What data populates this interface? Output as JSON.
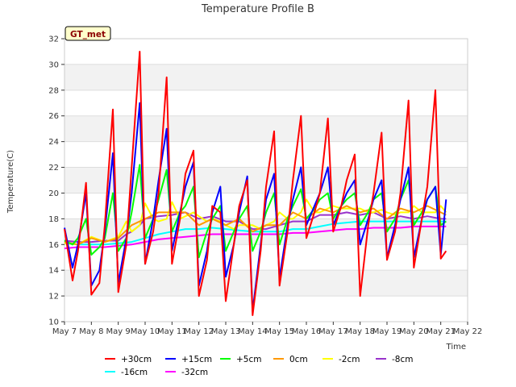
{
  "chart_data": {
    "type": "line",
    "title": "Temperature Profile B",
    "xlabel": "Time",
    "ylabel": "Temperature(C)",
    "site_label": "GT_met",
    "x_ticks": [
      "May 7",
      "May 8",
      "May 9",
      "May 10",
      "May 11",
      "May 12",
      "May 13",
      "May 14",
      "May 15",
      "May 16",
      "May 17",
      "May 18",
      "May 19",
      "May 20",
      "May 21",
      "May 22"
    ],
    "xlim_days": [
      7,
      22
    ],
    "ylim": [
      10,
      32
    ],
    "y_ticks": [
      10,
      12,
      14,
      16,
      18,
      20,
      22,
      24,
      26,
      28,
      30,
      32
    ],
    "grid": "horizontal alternating bands",
    "legend_position": "bottom",
    "series": [
      {
        "name": "+30cm",
        "color": "#ff0000",
        "x": [
          7.0,
          7.3,
          7.5,
          7.8,
          8.0,
          8.3,
          8.5,
          8.8,
          9.0,
          9.3,
          9.5,
          9.8,
          10.0,
          10.3,
          10.5,
          10.8,
          11.0,
          11.3,
          11.5,
          11.8,
          12.0,
          12.3,
          12.5,
          12.8,
          13.0,
          13.3,
          13.5,
          13.8,
          14.0,
          14.3,
          14.5,
          14.8,
          15.0,
          15.3,
          15.5,
          15.8,
          16.0,
          16.3,
          16.5,
          16.8,
          17.0,
          17.3,
          17.5,
          17.8,
          18.0,
          18.3,
          18.5,
          18.8,
          19.0,
          19.3,
          19.5,
          19.8,
          20.0,
          20.3,
          20.5,
          20.8,
          21.0,
          21.2
        ],
        "y": [
          17.2,
          13.2,
          15.5,
          20.8,
          12.1,
          13.0,
          17.5,
          26.5,
          12.3,
          16.0,
          22.0,
          31.0,
          14.5,
          17.0,
          20.0,
          29.0,
          14.5,
          18.0,
          21.5,
          23.3,
          12.0,
          14.8,
          19.0,
          18.5,
          11.6,
          16.0,
          19.0,
          21.0,
          10.5,
          15.5,
          20.5,
          24.8,
          12.8,
          17.0,
          21.0,
          26.0,
          16.5,
          18.5,
          20.0,
          25.8,
          17.0,
          19.0,
          21.0,
          23.0,
          12.0,
          17.5,
          20.0,
          24.7,
          14.8,
          17.0,
          20.0,
          27.2,
          14.2,
          18.0,
          20.5,
          28.0,
          14.9,
          15.5
        ]
      },
      {
        "name": "+15cm",
        "color": "#0000ff",
        "x": [
          7.0,
          7.3,
          7.5,
          7.8,
          8.0,
          8.3,
          8.5,
          8.8,
          9.0,
          9.3,
          9.5,
          9.8,
          10.0,
          10.3,
          10.5,
          10.8,
          11.0,
          11.3,
          11.5,
          11.8,
          12.0,
          12.3,
          12.5,
          12.8,
          13.0,
          13.3,
          13.5,
          13.8,
          14.0,
          14.3,
          14.5,
          14.8,
          15.0,
          15.3,
          15.5,
          15.8,
          16.0,
          16.3,
          16.5,
          16.8,
          17.0,
          17.3,
          17.5,
          17.8,
          18.0,
          18.3,
          18.5,
          18.8,
          19.0,
          19.3,
          19.5,
          19.8,
          20.0,
          20.3,
          20.5,
          20.8,
          21.0,
          21.2
        ],
        "y": [
          17.3,
          14.2,
          16.0,
          20.0,
          12.8,
          14.0,
          17.0,
          23.1,
          13.0,
          16.5,
          20.0,
          27.0,
          14.5,
          18.0,
          21.0,
          25.0,
          15.5,
          18.5,
          20.5,
          22.4,
          12.8,
          15.5,
          18.5,
          20.5,
          13.5,
          16.0,
          18.5,
          21.3,
          10.8,
          16.0,
          19.5,
          21.5,
          13.4,
          17.5,
          19.5,
          22.0,
          17.5,
          19.0,
          20.0,
          22.0,
          17.5,
          19.0,
          20.0,
          21.0,
          16.0,
          18.0,
          19.5,
          21.0,
          15.0,
          17.5,
          19.5,
          22.0,
          15.0,
          18.0,
          19.5,
          20.5,
          15.2,
          19.5
        ]
      },
      {
        "name": "+5cm",
        "color": "#00ff00",
        "x": [
          7.0,
          7.3,
          7.5,
          7.8,
          8.0,
          8.3,
          8.5,
          8.8,
          9.0,
          9.3,
          9.5,
          9.8,
          10.0,
          10.3,
          10.5,
          10.8,
          11.0,
          11.3,
          11.5,
          11.8,
          12.0,
          12.3,
          12.5,
          12.8,
          13.0,
          13.3,
          13.5,
          13.8,
          14.0,
          14.3,
          14.5,
          14.8,
          15.0,
          15.3,
          15.5,
          15.8,
          16.0,
          16.3,
          16.5,
          16.8,
          17.0,
          17.3,
          17.5,
          17.8,
          18.0,
          18.3,
          18.5,
          18.8,
          19.0,
          19.3,
          19.5,
          19.8,
          20.0,
          20.3,
          20.5,
          20.8,
          21.0,
          21.2
        ],
        "y": [
          16.3,
          16.0,
          16.5,
          18.0,
          15.2,
          15.8,
          16.5,
          20.0,
          15.5,
          16.5,
          18.5,
          22.2,
          16.5,
          18.0,
          19.5,
          21.8,
          17.0,
          18.5,
          19.0,
          20.5,
          15.0,
          17.0,
          18.0,
          19.0,
          15.5,
          17.0,
          18.0,
          19.0,
          15.5,
          17.0,
          18.5,
          20.0,
          16.0,
          18.0,
          19.0,
          20.3,
          18.0,
          18.8,
          19.5,
          20.0,
          18.0,
          19.0,
          19.5,
          20.0,
          17.5,
          18.5,
          19.5,
          20.0,
          17.0,
          18.0,
          19.5,
          21.0,
          17.5,
          18.5,
          19.5,
          20.5,
          17.5,
          17.8
        ]
      },
      {
        "name": "0cm",
        "color": "#ff9900",
        "x": [
          7.0,
          7.5,
          8.0,
          8.5,
          9.0,
          9.5,
          10.0,
          10.5,
          11.0,
          11.5,
          12.0,
          12.5,
          13.0,
          13.5,
          14.0,
          14.5,
          15.0,
          15.5,
          16.0,
          16.5,
          17.0,
          17.5,
          18.0,
          18.5,
          19.0,
          19.5,
          20.0,
          20.5,
          21.0,
          21.2
        ],
        "y": [
          16.2,
          16.0,
          16.5,
          16.2,
          16.5,
          17.5,
          18.0,
          18.5,
          18.5,
          18.5,
          17.5,
          18.0,
          17.5,
          18.0,
          17.0,
          17.5,
          17.5,
          18.5,
          18.0,
          18.8,
          18.5,
          19.0,
          18.5,
          18.8,
          18.0,
          18.8,
          18.5,
          19.0,
          18.5,
          18.3
        ]
      },
      {
        "name": "-2cm",
        "color": "#ffff00",
        "x": [
          7.0,
          7.5,
          8.0,
          8.5,
          9.0,
          9.3,
          9.5,
          9.8,
          10.0,
          10.3,
          10.5,
          10.8,
          11.0,
          11.3,
          11.5,
          11.8,
          12.0,
          12.3,
          12.5,
          12.8,
          13.0,
          13.3,
          13.5,
          13.8,
          14.0,
          14.3,
          14.5,
          14.8,
          15.0,
          15.3,
          15.5,
          15.8,
          16.0,
          16.3,
          16.5,
          16.8,
          17.0,
          17.3,
          17.5,
          17.8,
          18.0,
          18.3,
          18.5,
          18.8,
          19.0,
          19.3,
          19.5,
          19.8,
          20.0,
          20.3,
          20.5,
          20.8,
          21.0,
          21.2
        ],
        "y": [
          16.1,
          16.0,
          16.6,
          16.2,
          16.6,
          17.8,
          17.0,
          17.5,
          19.2,
          18.0,
          17.8,
          18.0,
          19.3,
          18.0,
          18.2,
          18.5,
          18.2,
          17.8,
          18.0,
          17.8,
          17.5,
          17.2,
          17.5,
          17.5,
          17.5,
          17.2,
          17.5,
          17.8,
          18.5,
          18.0,
          18.0,
          18.5,
          19.5,
          18.5,
          18.5,
          18.8,
          19.0,
          18.8,
          18.8,
          18.8,
          18.8,
          18.5,
          18.5,
          18.7,
          18.5,
          18.3,
          18.5,
          18.5,
          19.0,
          18.5,
          18.5,
          18.5,
          19.0,
          18.5
        ]
      },
      {
        "name": "-8cm",
        "color": "#9933cc",
        "x": [
          7.0,
          7.5,
          8.0,
          8.5,
          9.0,
          9.3,
          9.5,
          9.8,
          10.0,
          10.5,
          11.0,
          11.5,
          12.0,
          12.5,
          13.0,
          13.5,
          14.0,
          14.5,
          15.0,
          15.5,
          16.0,
          16.5,
          17.0,
          17.5,
          18.0,
          18.5,
          19.0,
          19.5,
          20.0,
          20.5,
          21.0,
          21.2
        ],
        "y": [
          16.3,
          16.2,
          16.2,
          16.3,
          16.3,
          16.8,
          17.0,
          17.5,
          18.0,
          18.2,
          18.3,
          18.5,
          18.0,
          18.2,
          17.8,
          17.8,
          17.2,
          17.2,
          17.5,
          17.8,
          17.8,
          18.3,
          18.3,
          18.5,
          18.3,
          18.5,
          18.0,
          18.2,
          18.0,
          18.2,
          18.0,
          18.0
        ]
      },
      {
        "name": "-16cm",
        "color": "#00ffff",
        "x": [
          7.0,
          7.5,
          8.0,
          8.5,
          9.0,
          9.5,
          10.0,
          10.5,
          11.0,
          11.5,
          12.0,
          12.5,
          13.0,
          13.5,
          14.0,
          14.5,
          15.0,
          15.5,
          16.0,
          16.5,
          17.0,
          17.5,
          18.0,
          18.5,
          19.0,
          19.5,
          20.0,
          20.5,
          21.0,
          21.2
        ],
        "y": [
          16.1,
          16.0,
          16.0,
          16.0,
          16.1,
          16.2,
          16.5,
          16.8,
          17.0,
          17.2,
          17.2,
          17.3,
          17.2,
          17.1,
          17.0,
          17.0,
          17.0,
          17.2,
          17.2,
          17.4,
          17.6,
          17.7,
          17.8,
          17.8,
          17.8,
          17.8,
          17.8,
          17.8,
          17.8,
          17.8
        ]
      },
      {
        "name": "-32cm",
        "color": "#ff00ff",
        "x": [
          7.0,
          7.5,
          8.0,
          8.5,
          9.0,
          9.5,
          10.0,
          10.5,
          11.0,
          11.5,
          12.0,
          12.5,
          13.0,
          13.5,
          14.0,
          14.5,
          15.0,
          15.5,
          16.0,
          16.5,
          17.0,
          17.5,
          18.0,
          18.5,
          19.0,
          19.5,
          20.0,
          20.5,
          21.0,
          21.2
        ],
        "y": [
          15.7,
          15.8,
          15.8,
          15.8,
          15.9,
          16.0,
          16.2,
          16.4,
          16.5,
          16.6,
          16.7,
          16.8,
          16.8,
          16.8,
          16.8,
          16.8,
          16.8,
          16.9,
          16.9,
          17.0,
          17.1,
          17.2,
          17.2,
          17.3,
          17.3,
          17.3,
          17.4,
          17.4,
          17.4,
          17.4
        ]
      }
    ]
  }
}
